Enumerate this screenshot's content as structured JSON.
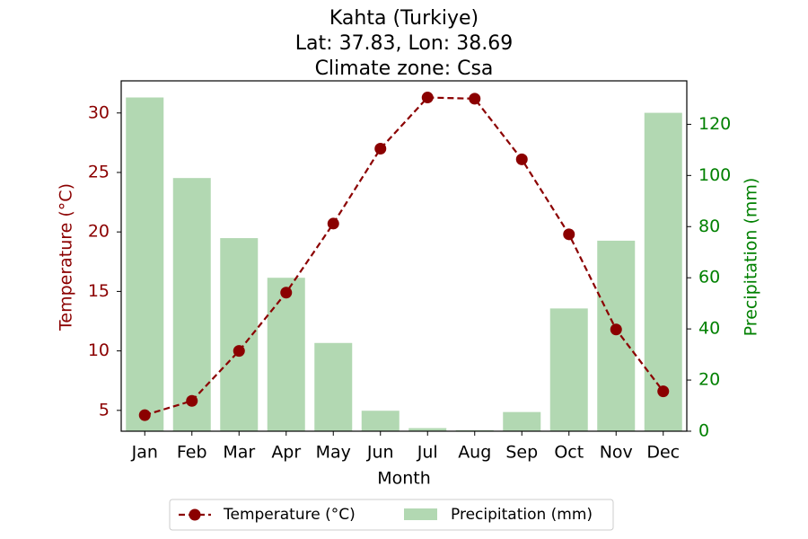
{
  "chart_data": {
    "type": "bar+line",
    "title_lines": [
      "Kahta (Turkiye)",
      "Lat: 37.83, Lon: 38.69",
      "Climate zone: Csa"
    ],
    "categories": [
      "Jan",
      "Feb",
      "Mar",
      "Apr",
      "May",
      "Jun",
      "Jul",
      "Aug",
      "Sep",
      "Oct",
      "Nov",
      "Dec"
    ],
    "xlabel": "Month",
    "series": [
      {
        "name": "Temperature (°C)",
        "type": "line",
        "axis": "left",
        "color": "#8b0000",
        "style": "dashed",
        "marker": "circle",
        "values": [
          4.6,
          5.8,
          10.0,
          14.9,
          20.7,
          27.0,
          31.3,
          31.2,
          26.1,
          19.8,
          11.8,
          6.6
        ]
      },
      {
        "name": "Precipitation (mm)",
        "type": "bar",
        "axis": "right",
        "color": "#b2d8b2",
        "values": [
          130.5,
          99.0,
          75.5,
          60.0,
          34.5,
          8.0,
          1.2,
          0.4,
          7.5,
          48.0,
          74.5,
          124.5
        ]
      }
    ],
    "y_left": {
      "label": "Temperature (°C)",
      "lim": [
        3.25,
        32.7
      ],
      "ticks": [
        5,
        10,
        15,
        20,
        25,
        30
      ],
      "color": "#8b0000"
    },
    "y_right": {
      "label": "Precipitation (mm)",
      "lim": [
        0,
        137
      ],
      "ticks": [
        0,
        20,
        40,
        60,
        80,
        100,
        120
      ],
      "color": "#008000"
    },
    "legend": {
      "placement": "bottom-center",
      "entries": [
        "Temperature (°C)",
        "Precipitation (mm)"
      ]
    },
    "grid": false
  }
}
